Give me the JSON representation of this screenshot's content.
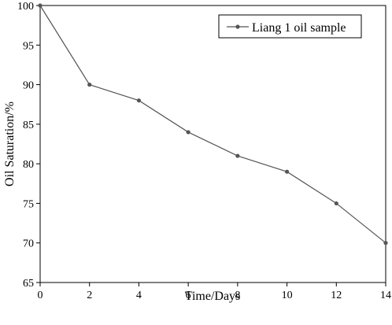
{
  "chart_data": {
    "type": "line",
    "xlabel": "Time/Days",
    "ylabel": "Oil Saturation/%",
    "xlim": [
      0,
      14
    ],
    "ylim": [
      65,
      100
    ],
    "x_ticks": [
      0,
      2,
      4,
      6,
      8,
      10,
      12,
      14
    ],
    "y_ticks": [
      65,
      70,
      75,
      80,
      85,
      90,
      95,
      100
    ],
    "grid": false,
    "legend_position": "top-right",
    "series": [
      {
        "name": "Liang 1 oil sample",
        "color": "#555555",
        "marker": "circle",
        "x": [
          0,
          2,
          4,
          6,
          8,
          10,
          12,
          14
        ],
        "y": [
          100,
          90,
          88,
          84,
          81,
          79,
          75,
          70
        ]
      }
    ]
  }
}
